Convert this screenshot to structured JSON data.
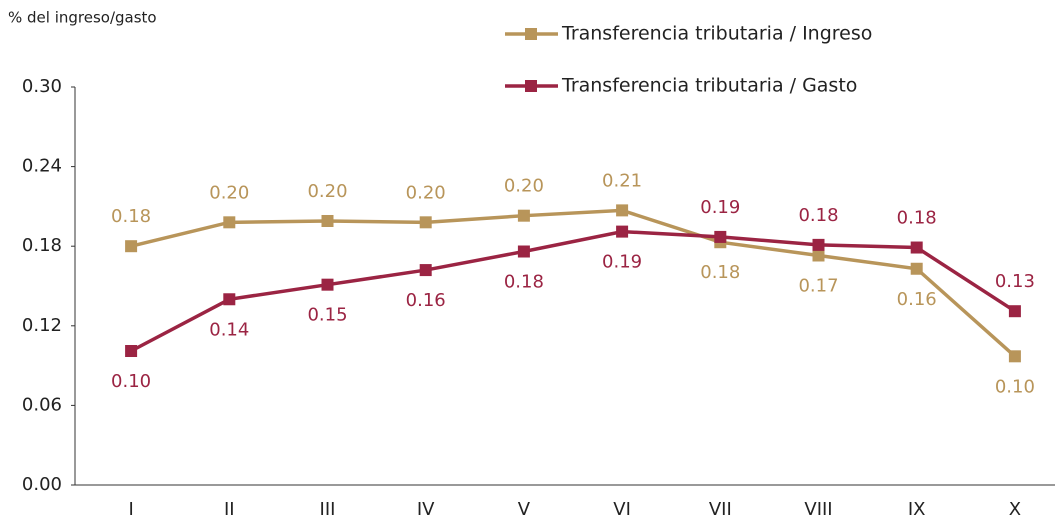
{
  "chart_data": {
    "type": "line",
    "y_label": "% del ingreso/gasto",
    "categories": [
      "I",
      "II",
      "III",
      "IV",
      "V",
      "VI",
      "VII",
      "VIII",
      "IX",
      "X"
    ],
    "series": [
      {
        "name": "Transferencia tributaria / Ingreso",
        "color": "#b8955a",
        "values": [
          0.18,
          0.198,
          0.199,
          0.198,
          0.203,
          0.207,
          0.183,
          0.173,
          0.163,
          0.097
        ],
        "value_labels": [
          "0.18",
          "0.20",
          "0.20",
          "0.20",
          "0.20",
          "0.21",
          "0.18",
          "0.17",
          "0.16",
          "0.10"
        ]
      },
      {
        "name": "Transferencia tributaria / Gasto",
        "color": "#9b2443",
        "values": [
          0.101,
          0.14,
          0.151,
          0.162,
          0.176,
          0.191,
          0.187,
          0.181,
          0.179,
          0.131
        ],
        "value_labels": [
          "0.10",
          "0.14",
          "0.15",
          "0.16",
          "0.18",
          "0.19",
          "0.19",
          "0.18",
          "0.18",
          "0.13"
        ]
      }
    ],
    "ylim": [
      0,
      0.3
    ],
    "yticks": [
      {
        "value": 0,
        "label": "0.00"
      },
      {
        "value": 0.06,
        "label": "0.06"
      },
      {
        "value": 0.12,
        "label": "0.12"
      },
      {
        "value": 0.18,
        "label": "0.18"
      },
      {
        "value": 0.24,
        "label": "0.24"
      },
      {
        "value": 0.3,
        "label": "0.30"
      }
    ],
    "legend": "top"
  }
}
